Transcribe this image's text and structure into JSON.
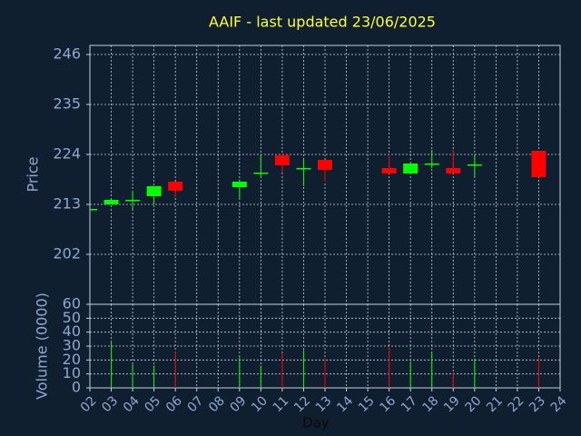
{
  "chart_data": [
    {
      "type": "candlestick",
      "title": "AAIF - last updated 23/06/2025",
      "ylabel": "Price",
      "x": [
        2,
        3,
        4,
        5,
        6,
        9,
        10,
        11,
        12,
        13,
        16,
        17,
        18,
        19,
        20,
        23
      ],
      "open": [
        211.8,
        213,
        213.8,
        214.8,
        218,
        216.8,
        219.8,
        223.8,
        220.8,
        222.8,
        221,
        219.8,
        221.8,
        221,
        221.6,
        224.8
      ],
      "high": [
        212,
        214,
        216,
        217,
        218,
        218.5,
        224,
        224.2,
        223,
        222.8,
        224,
        222,
        225,
        225,
        224,
        224.8
      ],
      "low": [
        211.8,
        213,
        212,
        213,
        214.6,
        214,
        219,
        220,
        217,
        218,
        219.8,
        219.8,
        221,
        219.8,
        219,
        219
      ],
      "close": [
        212,
        214,
        214,
        217,
        216,
        218,
        220,
        221.6,
        221,
        220.6,
        219.8,
        222,
        222,
        219.8,
        221.8,
        219
      ],
      "up_color": "#00ff00",
      "down_color": "#ff0000",
      "ylim": [
        191,
        248
      ],
      "yticks": [
        202,
        213,
        224,
        235,
        246
      ],
      "grid": true
    },
    {
      "type": "bar",
      "ylabel": "Volume (0000)",
      "xlabel": "Day",
      "values": [
        0,
        34,
        17,
        16,
        26,
        22,
        16,
        25,
        27,
        21,
        30,
        19,
        25,
        11,
        21,
        22
      ],
      "ylim": [
        0,
        60
      ],
      "yticks": [
        0,
        10,
        20,
        30,
        40,
        50,
        60
      ],
      "xlim": [
        2,
        24
      ],
      "xticks": [
        {
          "value": 2,
          "label": "02"
        },
        {
          "value": 3,
          "label": "03"
        },
        {
          "value": 4,
          "label": "04"
        },
        {
          "value": 5,
          "label": "05"
        },
        {
          "value": 6,
          "label": "06"
        },
        {
          "value": 7,
          "label": "07"
        },
        {
          "value": 8,
          "label": "08"
        },
        {
          "value": 9,
          "label": "09"
        },
        {
          "value": 10,
          "label": "10"
        },
        {
          "value": 11,
          "label": "11"
        },
        {
          "value": 12,
          "label": "12"
        },
        {
          "value": 13,
          "label": "13"
        },
        {
          "value": 14,
          "label": "14"
        },
        {
          "value": 15,
          "label": "15"
        },
        {
          "value": 16,
          "label": "16"
        },
        {
          "value": 17,
          "label": "17"
        },
        {
          "value": 18,
          "label": "18"
        },
        {
          "value": 19,
          "label": "19"
        },
        {
          "value": 20,
          "label": "20"
        },
        {
          "value": 21,
          "label": "21"
        },
        {
          "value": 22,
          "label": "22"
        },
        {
          "value": 23,
          "label": "23"
        },
        {
          "value": 24,
          "label": "24"
        }
      ],
      "grid": true
    }
  ]
}
